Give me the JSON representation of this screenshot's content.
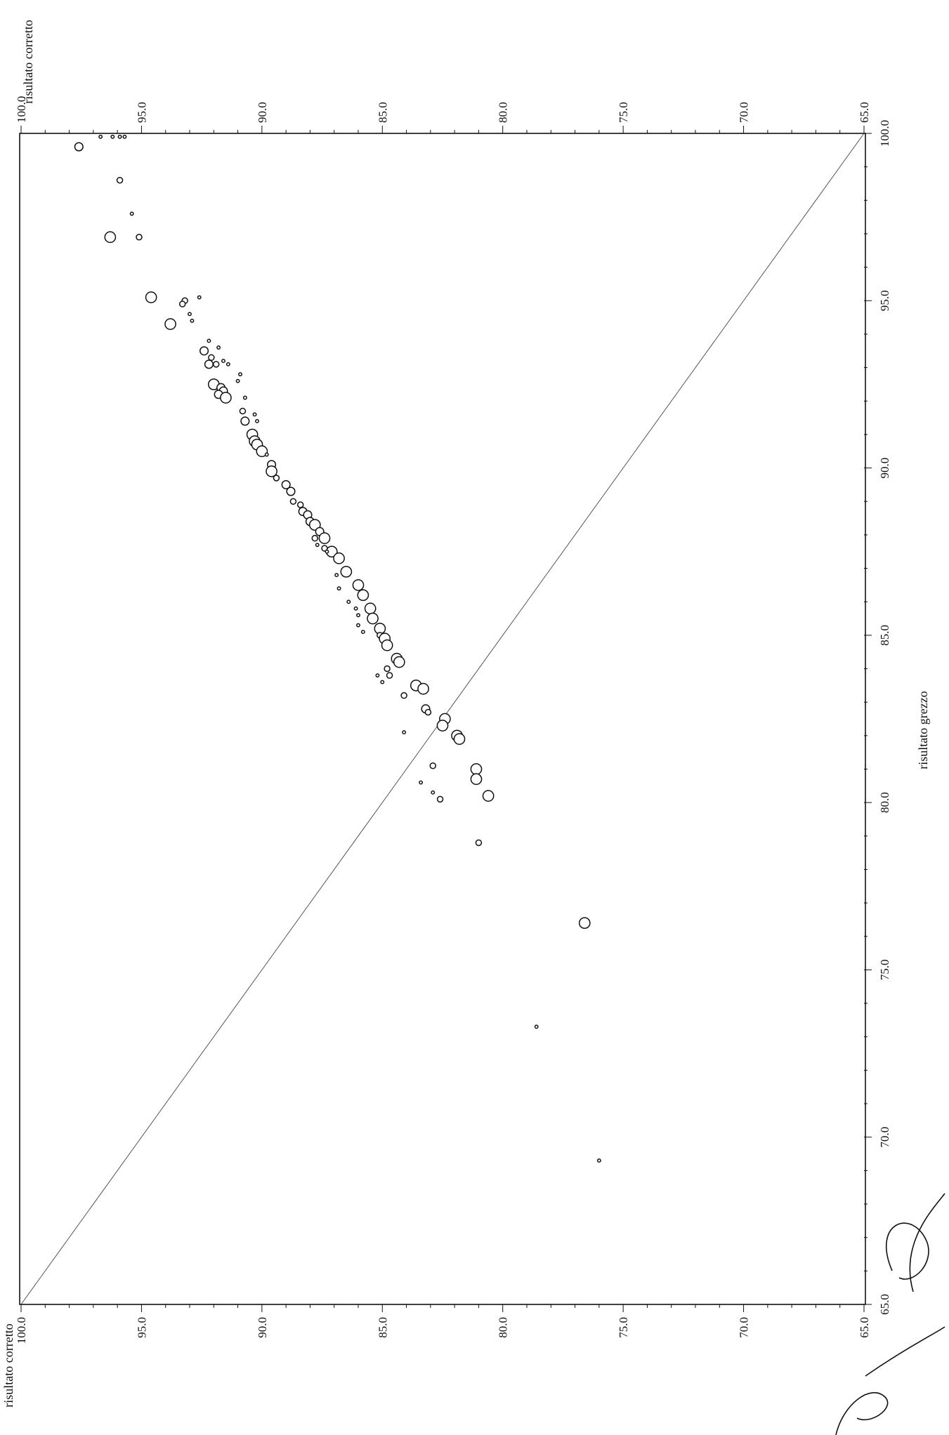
{
  "chart_data": {
    "type": "scatter",
    "x_title": "risultato grezzo",
    "y_title_left": "risultato corretto",
    "y_title_top": "risultato corretto",
    "xlim": [
      65.0,
      100.0
    ],
    "ylim": [
      65.0,
      100.0
    ],
    "x_ticks": [
      "65.0",
      "70.0",
      "75.0",
      "80.0",
      "85.0",
      "90.0",
      "95.0",
      "100.0"
    ],
    "y_ticks": [
      "65.0",
      "70.0",
      "75.0",
      "80.0",
      "85.0",
      "90.0",
      "95.0",
      "100.0"
    ],
    "grid": false,
    "reference_line": "y = x",
    "series": [
      {
        "marker": "open-circle",
        "points": [
          {
            "x": 99.6,
            "y": 97.6,
            "size": 3
          },
          {
            "x": 99.9,
            "y": 96.7,
            "size": 1
          },
          {
            "x": 99.9,
            "y": 96.2,
            "size": 1
          },
          {
            "x": 99.9,
            "y": 95.9,
            "size": 1
          },
          {
            "x": 99.9,
            "y": 95.7,
            "size": 1
          },
          {
            "x": 98.6,
            "y": 95.9,
            "size": 2
          },
          {
            "x": 97.6,
            "y": 95.4,
            "size": 1
          },
          {
            "x": 96.9,
            "y": 96.3,
            "size": 4
          },
          {
            "x": 96.9,
            "y": 95.1,
            "size": 2
          },
          {
            "x": 95.1,
            "y": 94.6,
            "size": 4
          },
          {
            "x": 95.0,
            "y": 93.2,
            "size": 2
          },
          {
            "x": 94.9,
            "y": 93.3,
            "size": 2
          },
          {
            "x": 95.1,
            "y": 92.6,
            "size": 1
          },
          {
            "x": 94.6,
            "y": 93.0,
            "size": 1
          },
          {
            "x": 94.4,
            "y": 92.9,
            "size": 1
          },
          {
            "x": 94.3,
            "y": 93.8,
            "size": 4
          },
          {
            "x": 93.8,
            "y": 92.2,
            "size": 1
          },
          {
            "x": 93.6,
            "y": 91.8,
            "size": 1
          },
          {
            "x": 93.5,
            "y": 92.4,
            "size": 3
          },
          {
            "x": 93.3,
            "y": 92.1,
            "size": 2
          },
          {
            "x": 93.2,
            "y": 91.6,
            "size": 1
          },
          {
            "x": 93.1,
            "y": 92.2,
            "size": 3
          },
          {
            "x": 93.1,
            "y": 91.9,
            "size": 2
          },
          {
            "x": 93.1,
            "y": 91.4,
            "size": 1
          },
          {
            "x": 92.8,
            "y": 90.9,
            "size": 1
          },
          {
            "x": 92.6,
            "y": 91.0,
            "size": 1
          },
          {
            "x": 92.5,
            "y": 92.0,
            "size": 4
          },
          {
            "x": 92.4,
            "y": 91.7,
            "size": 3
          },
          {
            "x": 92.3,
            "y": 91.6,
            "size": 3
          },
          {
            "x": 92.2,
            "y": 91.8,
            "size": 3
          },
          {
            "x": 92.1,
            "y": 91.5,
            "size": 4
          },
          {
            "x": 92.1,
            "y": 90.7,
            "size": 1
          },
          {
            "x": 91.7,
            "y": 90.8,
            "size": 2
          },
          {
            "x": 91.6,
            "y": 90.3,
            "size": 1
          },
          {
            "x": 91.4,
            "y": 90.7,
            "size": 3
          },
          {
            "x": 91.4,
            "y": 90.2,
            "size": 1
          },
          {
            "x": 91.0,
            "y": 90.4,
            "size": 4
          },
          {
            "x": 90.8,
            "y": 90.3,
            "size": 4
          },
          {
            "x": 90.7,
            "y": 90.2,
            "size": 4
          },
          {
            "x": 90.5,
            "y": 90.0,
            "size": 4
          },
          {
            "x": 90.4,
            "y": 89.8,
            "size": 1
          },
          {
            "x": 90.1,
            "y": 89.6,
            "size": 3
          },
          {
            "x": 89.9,
            "y": 89.6,
            "size": 4
          },
          {
            "x": 89.7,
            "y": 89.4,
            "size": 2
          },
          {
            "x": 89.5,
            "y": 89.0,
            "size": 3
          },
          {
            "x": 89.3,
            "y": 88.8,
            "size": 3
          },
          {
            "x": 89.0,
            "y": 88.7,
            "size": 2
          },
          {
            "x": 88.9,
            "y": 88.4,
            "size": 2
          },
          {
            "x": 88.7,
            "y": 88.3,
            "size": 3
          },
          {
            "x": 88.6,
            "y": 88.1,
            "size": 3
          },
          {
            "x": 88.4,
            "y": 88.0,
            "size": 3
          },
          {
            "x": 88.3,
            "y": 87.8,
            "size": 4
          },
          {
            "x": 88.1,
            "y": 87.6,
            "size": 3
          },
          {
            "x": 87.9,
            "y": 87.8,
            "size": 2
          },
          {
            "x": 87.9,
            "y": 87.4,
            "size": 4
          },
          {
            "x": 87.7,
            "y": 87.7,
            "size": 1
          },
          {
            "x": 87.6,
            "y": 87.4,
            "size": 2
          },
          {
            "x": 87.5,
            "y": 87.1,
            "size": 4
          },
          {
            "x": 87.5,
            "y": 87.3,
            "size": 1
          },
          {
            "x": 87.3,
            "y": 86.8,
            "size": 4
          },
          {
            "x": 86.9,
            "y": 86.5,
            "size": 4
          },
          {
            "x": 86.8,
            "y": 86.9,
            "size": 1
          },
          {
            "x": 86.5,
            "y": 86.0,
            "size": 4
          },
          {
            "x": 86.4,
            "y": 86.8,
            "size": 1
          },
          {
            "x": 86.2,
            "y": 85.8,
            "size": 4
          },
          {
            "x": 86.0,
            "y": 86.4,
            "size": 1
          },
          {
            "x": 85.8,
            "y": 85.5,
            "size": 4
          },
          {
            "x": 85.8,
            "y": 86.1,
            "size": 1
          },
          {
            "x": 85.6,
            "y": 86.0,
            "size": 1
          },
          {
            "x": 85.5,
            "y": 85.4,
            "size": 4
          },
          {
            "x": 85.3,
            "y": 86.0,
            "size": 1
          },
          {
            "x": 85.2,
            "y": 85.1,
            "size": 4
          },
          {
            "x": 85.1,
            "y": 85.8,
            "size": 1
          },
          {
            "x": 85.0,
            "y": 85.1,
            "size": 2
          },
          {
            "x": 84.9,
            "y": 84.9,
            "size": 4
          },
          {
            "x": 84.7,
            "y": 84.8,
            "size": 4
          },
          {
            "x": 84.3,
            "y": 84.4,
            "size": 4
          },
          {
            "x": 84.2,
            "y": 84.3,
            "size": 4
          },
          {
            "x": 84.0,
            "y": 84.8,
            "size": 2
          },
          {
            "x": 83.8,
            "y": 84.7,
            "size": 2
          },
          {
            "x": 83.8,
            "y": 85.2,
            "size": 1
          },
          {
            "x": 83.6,
            "y": 85.0,
            "size": 1
          },
          {
            "x": 83.5,
            "y": 83.6,
            "size": 4
          },
          {
            "x": 83.4,
            "y": 83.3,
            "size": 4
          },
          {
            "x": 83.2,
            "y": 84.1,
            "size": 2
          },
          {
            "x": 82.8,
            "y": 83.2,
            "size": 3
          },
          {
            "x": 82.7,
            "y": 83.1,
            "size": 2
          },
          {
            "x": 82.5,
            "y": 82.4,
            "size": 4
          },
          {
            "x": 82.3,
            "y": 82.5,
            "size": 4
          },
          {
            "x": 82.1,
            "y": 84.1,
            "size": 1
          },
          {
            "x": 82.0,
            "y": 81.9,
            "size": 4
          },
          {
            "x": 81.9,
            "y": 81.8,
            "size": 4
          },
          {
            "x": 81.1,
            "y": 82.9,
            "size": 2
          },
          {
            "x": 81.0,
            "y": 81.1,
            "size": 4
          },
          {
            "x": 80.7,
            "y": 81.1,
            "size": 4
          },
          {
            "x": 80.6,
            "y": 83.4,
            "size": 1
          },
          {
            "x": 80.3,
            "y": 82.9,
            "size": 1
          },
          {
            "x": 80.2,
            "y": 80.6,
            "size": 4
          },
          {
            "x": 80.1,
            "y": 82.6,
            "size": 2
          },
          {
            "x": 78.8,
            "y": 81.0,
            "size": 2
          },
          {
            "x": 76.4,
            "y": 76.6,
            "size": 4
          },
          {
            "x": 73.3,
            "y": 78.6,
            "size": 1
          },
          {
            "x": 69.3,
            "y": 76.0,
            "size": 1
          }
        ]
      }
    ]
  }
}
